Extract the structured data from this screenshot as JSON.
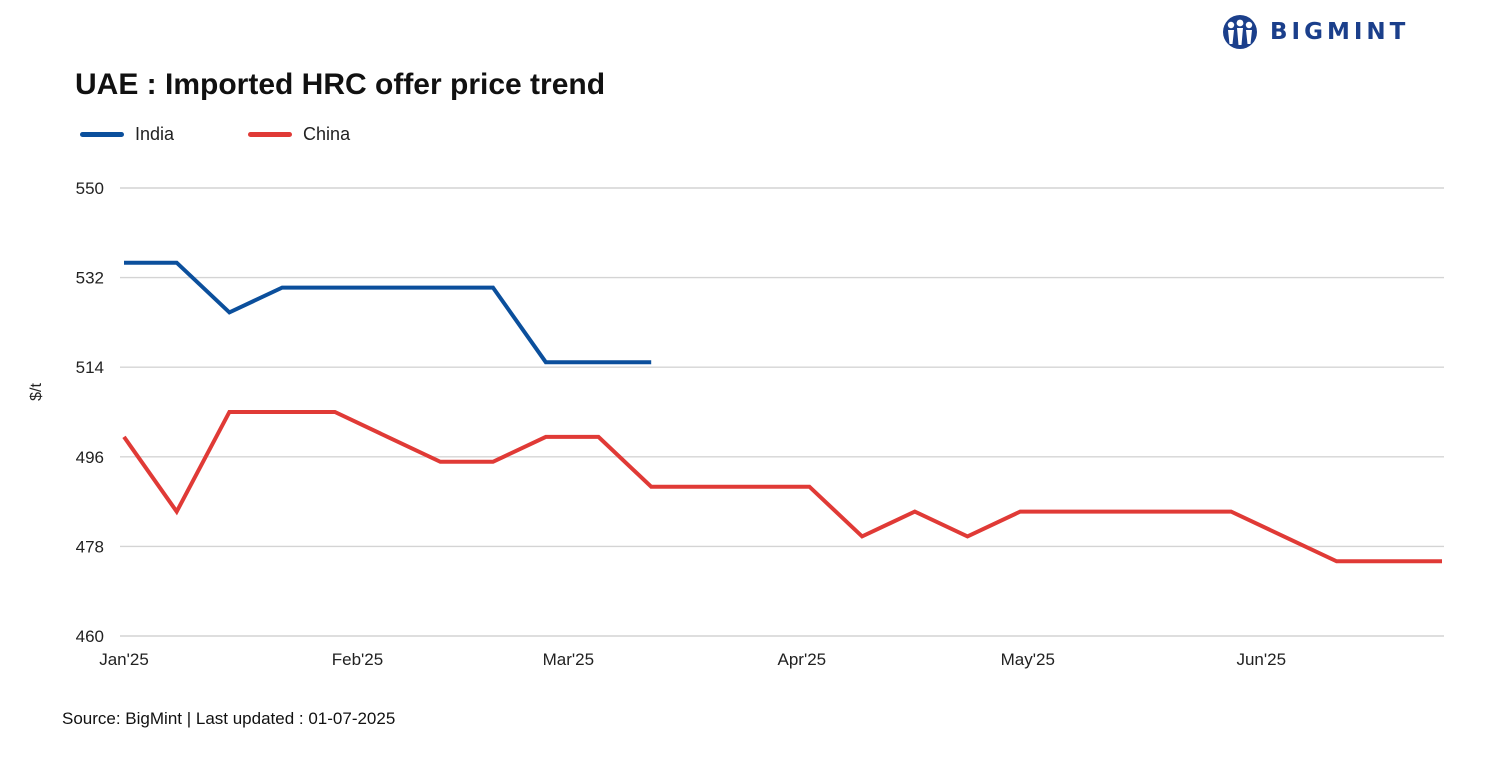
{
  "brand": {
    "name": "BIGMINT",
    "color": "#1b3f8b"
  },
  "chart_data": {
    "type": "line",
    "title": "UAE : Imported HRC offer price trend",
    "xlabel": "",
    "ylabel": "$/t",
    "ylim": [
      460,
      550
    ],
    "yticks": [
      460,
      478,
      496,
      514,
      532,
      550
    ],
    "grid": true,
    "legend_position": "top-left",
    "x_ticks": [
      {
        "label": "Jan'25",
        "date": "2025-01-01"
      },
      {
        "label": "Feb'25",
        "date": "2025-02-01"
      },
      {
        "label": "Mar'25",
        "date": "2025-03-01"
      },
      {
        "label": "Apr'25",
        "date": "2025-04-01"
      },
      {
        "label": "May'25",
        "date": "2025-05-01"
      },
      {
        "label": "Jun'25",
        "date": "2025-06-01"
      }
    ],
    "x": [
      "2025-01-01",
      "2025-01-08",
      "2025-01-15",
      "2025-01-22",
      "2025-01-29",
      "2025-02-05",
      "2025-02-12",
      "2025-02-19",
      "2025-02-26",
      "2025-03-05",
      "2025-03-12",
      "2025-03-19",
      "2025-03-26",
      "2025-04-02",
      "2025-04-09",
      "2025-04-16",
      "2025-04-23",
      "2025-04-30",
      "2025-05-07",
      "2025-05-14",
      "2025-05-21",
      "2025-05-28",
      "2025-06-04",
      "2025-06-11",
      "2025-06-18",
      "2025-06-25"
    ],
    "series": [
      {
        "name": "India",
        "color": "#0b4f9c",
        "values": [
          535,
          535,
          525,
          530,
          530,
          530,
          530,
          530,
          515,
          515,
          515,
          null,
          null,
          null,
          null,
          null,
          null,
          null,
          null,
          null,
          null,
          null,
          null,
          null,
          null,
          null
        ]
      },
      {
        "name": "China",
        "color": "#e03a36",
        "values": [
          500,
          485,
          505,
          505,
          505,
          500,
          495,
          495,
          500,
          500,
          490,
          490,
          490,
          490,
          480,
          485,
          480,
          485,
          485,
          485,
          485,
          485,
          480,
          475,
          475,
          475
        ]
      }
    ]
  },
  "source": "Source: BigMint | Last updated : 01-07-2025"
}
